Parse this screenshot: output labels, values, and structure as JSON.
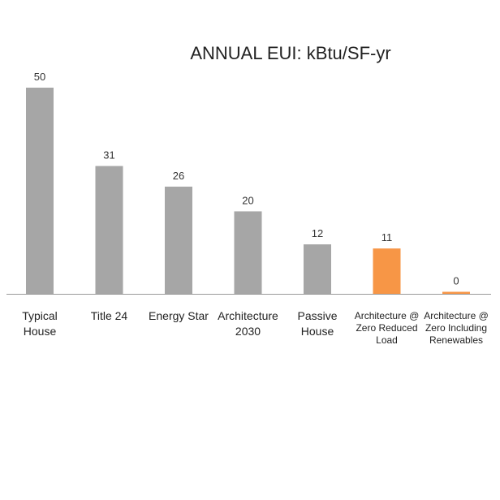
{
  "chart_data": {
    "type": "bar",
    "title": "ANNUAL EUI: kBtu/SF-yr",
    "xlabel": "",
    "ylabel": "",
    "ylim": [
      0,
      50
    ],
    "grid": false,
    "categories": [
      [
        "Typical",
        "House"
      ],
      [
        "Title 24"
      ],
      [
        "Energy Star"
      ],
      [
        "Architecture",
        "2030"
      ],
      [
        "Passive",
        "House"
      ],
      [
        "Architecture @",
        "Zero Reduced",
        "Load"
      ],
      [
        "Architecture @",
        "Zero Including",
        "Renewables"
      ]
    ],
    "values": [
      50,
      31,
      26,
      20,
      12,
      11,
      0
    ],
    "value_labels": [
      "50",
      "31",
      "26",
      "20",
      "12",
      "11",
      "0"
    ],
    "colors": [
      "#a6a6a6",
      "#a6a6a6",
      "#a6a6a6",
      "#a6a6a6",
      "#a6a6a6",
      "#f79646",
      "#f79646"
    ],
    "axis_color": "#999999"
  }
}
